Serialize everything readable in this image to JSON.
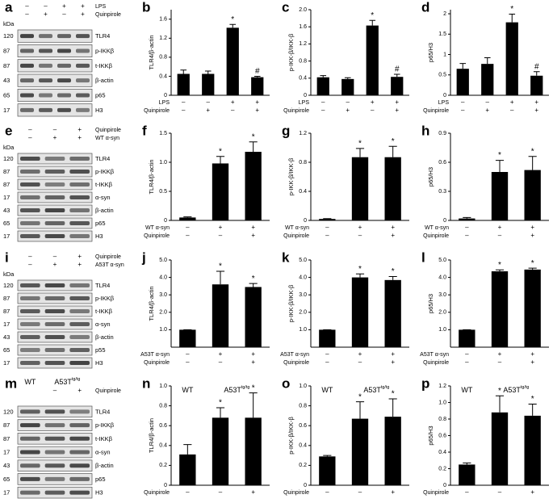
{
  "chart_data": [
    {
      "type": "bar",
      "panel_label": "b",
      "y_label": "TLR4/β-actin",
      "values": [
        0.45,
        0.45,
        1.42,
        0.38
      ],
      "errors": [
        0.08,
        0.06,
        0.07,
        0.02
      ],
      "marks": [
        null,
        null,
        "*",
        "#"
      ],
      "color": "#000000",
      "ylim": [
        0,
        1.8
      ],
      "yticks": [
        0,
        0.4,
        0.8,
        1.2,
        1.6
      ],
      "treatments": [
        {
          "name": "LPS",
          "signs": [
            "–",
            "–",
            "+",
            "+"
          ]
        },
        {
          "name": "Quinpirole",
          "signs": [
            "–",
            "+",
            "–",
            "+"
          ]
        }
      ]
    },
    {
      "type": "bar",
      "panel_label": "c",
      "y_label": "p-IKK-β/IKK-β",
      "values": [
        0.42,
        0.38,
        1.63,
        0.43
      ],
      "errors": [
        0.04,
        0.03,
        0.12,
        0.06
      ],
      "marks": [
        null,
        null,
        "*",
        "#"
      ],
      "color": "#000000",
      "ylim": [
        0,
        2.0
      ],
      "yticks": [
        0,
        0.4,
        0.8,
        1.2,
        1.6,
        {
          "value": 2,
          "label": "2.0"
        }
      ],
      "treatments": [
        {
          "name": "LPS",
          "signs": [
            "–",
            "–",
            "+",
            "+"
          ]
        },
        {
          "name": "Quinpirole",
          "signs": [
            "–",
            "+",
            "–",
            "+"
          ]
        }
      ]
    },
    {
      "type": "bar",
      "panel_label": "d",
      "y_label": "p65/H3",
      "values": [
        0.65,
        0.77,
        1.79,
        0.48
      ],
      "errors": [
        0.13,
        0.15,
        0.2,
        0.1
      ],
      "marks": [
        null,
        null,
        "*",
        "#"
      ],
      "color": "#000000",
      "ylim": [
        0,
        2.1
      ],
      "yticks": [
        0,
        0.5,
        1,
        1.5,
        2
      ],
      "treatments": [
        {
          "name": "LPS",
          "signs": [
            "–",
            "–",
            "+",
            "+"
          ]
        },
        {
          "name": "Quinpirole",
          "signs": [
            "–",
            "+",
            "–",
            "+"
          ]
        }
      ]
    },
    {
      "type": "bar",
      "panel_label": "f",
      "y_label": "TLR4/β-actin",
      "values": [
        0.05,
        0.98,
        1.18
      ],
      "errors": [
        0.01,
        0.12,
        0.17
      ],
      "marks": [
        null,
        "*",
        "*"
      ],
      "color": "#000000",
      "ylim": [
        0,
        1.5
      ],
      "yticks": [
        0,
        0.5,
        {
          "value": 1,
          "label": "1.0"
        },
        1.5
      ],
      "treatments": [
        {
          "name": "WT α-syn",
          "signs": [
            "–",
            "+",
            "+"
          ]
        },
        {
          "name": "Quinpirole",
          "signs": [
            "–",
            "–",
            "+"
          ]
        }
      ]
    },
    {
      "type": "bar",
      "panel_label": "g",
      "y_label": "p-IKK-β/IKK-β",
      "values": [
        0.02,
        0.87,
        0.87
      ],
      "errors": [
        0.005,
        0.12,
        0.15
      ],
      "marks": [
        null,
        "*",
        "*"
      ],
      "color": "#000000",
      "ylim": [
        0,
        1.2
      ],
      "yticks": [
        0,
        0.4,
        0.8,
        1.2
      ],
      "treatments": [
        {
          "name": "WT α-syn",
          "signs": [
            "–",
            "+",
            "+"
          ]
        },
        {
          "name": "Quinpirole",
          "signs": [
            "–",
            "–",
            "+"
          ]
        }
      ]
    },
    {
      "type": "bar",
      "panel_label": "h",
      "y_label": "p65/H3",
      "values": [
        0.02,
        0.5,
        0.52
      ],
      "errors": [
        0.01,
        0.12,
        0.14
      ],
      "marks": [
        null,
        "*",
        "*"
      ],
      "color": "#000000",
      "ylim": [
        0,
        0.9
      ],
      "yticks": [
        0,
        0.3,
        0.6,
        0.9
      ],
      "treatments": [
        {
          "name": "WT α-syn",
          "signs": [
            "–",
            "+",
            "+"
          ]
        },
        {
          "name": "Quinpirole",
          "signs": [
            "–",
            "–",
            "+"
          ]
        }
      ]
    },
    {
      "type": "bar",
      "panel_label": "j",
      "y_label": "TLR4/β-actin",
      "values": [
        1.0,
        3.6,
        3.45
      ],
      "errors": [
        0,
        0.75,
        0.2
      ],
      "marks": [
        null,
        "*",
        "*"
      ],
      "color": "#000000",
      "ylim": [
        0,
        5
      ],
      "yticks": [
        {
          "value": 1,
          "label": "1.0"
        },
        {
          "value": 2,
          "label": "2.0"
        },
        {
          "value": 3,
          "label": "3.0"
        },
        {
          "value": 4,
          "label": "4.0"
        },
        {
          "value": 5,
          "label": "5.0"
        }
      ],
      "treatments": [
        {
          "name": "A53T α-syn",
          "signs": [
            "–",
            "+",
            "+"
          ]
        },
        {
          "name": "Quinpirole",
          "signs": [
            "–",
            "–",
            "+"
          ]
        }
      ]
    },
    {
      "type": "bar",
      "panel_label": "k",
      "y_label": "p-IKK-β/IKK-β",
      "values": [
        1.0,
        4.0,
        3.85
      ],
      "errors": [
        0,
        0.2,
        0.2
      ],
      "marks": [
        null,
        "*",
        "*"
      ],
      "color": "#000000",
      "ylim": [
        0,
        5
      ],
      "yticks": [
        {
          "value": 1,
          "label": "1.0"
        },
        {
          "value": 2,
          "label": "2.0"
        },
        {
          "value": 3,
          "label": "3.0"
        },
        {
          "value": 4,
          "label": "4.0"
        },
        {
          "value": 5,
          "label": "5.0"
        }
      ],
      "treatments": [
        {
          "name": "A53T α-syn",
          "signs": [
            "–",
            "+",
            "+"
          ]
        },
        {
          "name": "Quinpirole",
          "signs": [
            "–",
            "–",
            "+"
          ]
        }
      ]
    },
    {
      "type": "bar",
      "panel_label": "l",
      "y_label": "p65/H3",
      "values": [
        1.0,
        4.35,
        4.45
      ],
      "errors": [
        0,
        0.08,
        0.08
      ],
      "marks": [
        null,
        "*",
        "*"
      ],
      "color": "#000000",
      "ylim": [
        0,
        5
      ],
      "yticks": [
        {
          "value": 1,
          "label": "1.0"
        },
        {
          "value": 2,
          "label": "2.0"
        },
        {
          "value": 3,
          "label": "3.0"
        },
        {
          "value": 4,
          "label": "4.0"
        },
        {
          "value": 5,
          "label": "5.0"
        }
      ],
      "treatments": [
        {
          "name": "A53T α-syn",
          "signs": [
            "–",
            "+",
            "+"
          ]
        },
        {
          "name": "Quinpirole",
          "signs": [
            "–",
            "–",
            "+"
          ]
        }
      ]
    },
    {
      "type": "bar",
      "panel_label": "n",
      "y_label": "TLR4/β-actin",
      "values": [
        0.31,
        0.68,
        0.68
      ],
      "errors": [
        0.1,
        0.1,
        0.25
      ],
      "marks": [
        null,
        "*",
        "*"
      ],
      "color": "#000000",
      "ylim": [
        0,
        1.0
      ],
      "yticks": [
        0,
        0.2,
        0.4,
        0.6,
        0.8,
        {
          "value": 1,
          "label": "1.0"
        }
      ],
      "groups": [
        {
          "text": "WT"
        },
        {
          "text": "A53T",
          "sup": "tg/tg"
        }
      ],
      "treatments": [
        {
          "name": "Quinpirole",
          "signs": [
            "–",
            "–",
            "+"
          ]
        }
      ]
    },
    {
      "type": "bar",
      "panel_label": "o",
      "y_label": "p-IKK-β/IKK-β",
      "values": [
        0.29,
        0.67,
        0.69
      ],
      "errors": [
        0.01,
        0.17,
        0.18
      ],
      "marks": [
        null,
        "*",
        "*"
      ],
      "color": "#000000",
      "ylim": [
        0,
        1.0
      ],
      "yticks": [
        0,
        0.2,
        0.4,
        0.6,
        0.8,
        {
          "value": 1,
          "label": "1.0"
        }
      ],
      "groups": [
        {
          "text": "WT"
        },
        {
          "text": "A53T",
          "sup": "tg/tg"
        }
      ],
      "treatments": [
        {
          "name": "Quinpirole",
          "signs": [
            "–",
            "–",
            "+"
          ]
        }
      ]
    },
    {
      "type": "bar",
      "panel_label": "p",
      "y_label": "p65/H3",
      "values": [
        0.25,
        0.88,
        0.84
      ],
      "errors": [
        0.02,
        0.2,
        0.14
      ],
      "marks": [
        null,
        "*",
        "*"
      ],
      "color": "#000000",
      "ylim": [
        0,
        1.2
      ],
      "yticks": [
        0,
        0.2,
        0.4,
        0.6,
        0.8,
        {
          "value": 1,
          "label": "1.0"
        },
        1.2
      ],
      "groups": [
        {
          "text": "WT"
        },
        {
          "text": "A53T",
          "sup": "tg/tg"
        }
      ],
      "treatments": [
        {
          "name": "Quinpirole",
          "signs": [
            "–",
            "–",
            "+"
          ]
        }
      ]
    }
  ],
  "blots": [
    {
      "panel_label": "a",
      "unit": "kDa",
      "lanes": 4,
      "header": [
        {
          "name": "LPS",
          "signs": [
            "–",
            "–",
            "+",
            "+"
          ]
        },
        {
          "name": "Quinpirole",
          "signs": [
            "–",
            "+",
            "–",
            "+"
          ]
        }
      ],
      "rows": [
        {
          "kda": "120",
          "protein": "TLR4"
        },
        {
          "kda": "87",
          "protein": "p-IKKβ"
        },
        {
          "kda": "87",
          "protein": "t-IKKβ"
        },
        {
          "kda": "43",
          "protein": "β-actin"
        },
        {
          "kda": "65",
          "protein": "p65"
        },
        {
          "kda": "17",
          "protein": "H3"
        }
      ]
    },
    {
      "panel_label": "e",
      "unit": "kDa",
      "lanes": 3,
      "header": [
        {
          "name": "Quinpirole",
          "signs": [
            "–",
            "–",
            "+"
          ]
        },
        {
          "name": "WT α-syn",
          "signs": [
            "–",
            "+",
            "+"
          ]
        }
      ],
      "rows": [
        {
          "kda": "120",
          "protein": "TLR4"
        },
        {
          "kda": "87",
          "protein": "p-IKKβ"
        },
        {
          "kda": "87",
          "protein": "t-IKKβ"
        },
        {
          "kda": "17",
          "protein": "α-syn"
        },
        {
          "kda": "43",
          "protein": "β-actin"
        },
        {
          "kda": "65",
          "protein": "p65"
        },
        {
          "kda": "17",
          "protein": "H3"
        }
      ]
    },
    {
      "panel_label": "i",
      "unit": "kDa",
      "lanes": 3,
      "header": [
        {
          "name": "Quinpirole",
          "signs": [
            "–",
            "–",
            "+"
          ]
        },
        {
          "name": "A53T α-syn",
          "signs": [
            "–",
            "+",
            "+"
          ]
        }
      ],
      "rows": [
        {
          "kda": "120",
          "protein": "TLR4"
        },
        {
          "kda": "87",
          "protein": "p-IKKβ"
        },
        {
          "kda": "87",
          "protein": "t-IKKβ"
        },
        {
          "kda": "17",
          "protein": "α-syn"
        },
        {
          "kda": "43",
          "protein": "β-actin"
        },
        {
          "kda": "65",
          "protein": "p55"
        },
        {
          "kda": "17",
          "protein": "H3"
        }
      ]
    },
    {
      "panel_label": "m",
      "lanes": 3,
      "groups": [
        {
          "text": "WT"
        },
        {
          "text": "A53T",
          "sup": "tg/tg"
        }
      ],
      "header": [
        {
          "name": "Quinpirole",
          "signs": [
            null,
            "–",
            "+"
          ]
        }
      ],
      "rows": [
        {
          "kda": "120",
          "protein": "TLR4"
        },
        {
          "kda": "87",
          "protein": "p-IKKβ"
        },
        {
          "kda": "87",
          "protein": "t-IKKβ"
        },
        {
          "kda": "17",
          "protein": "α-syn"
        },
        {
          "kda": "43",
          "protein": "β-actin"
        },
        {
          "kda": "65",
          "protein": "p65"
        },
        {
          "kda": "17",
          "protein": "H3"
        }
      ]
    }
  ]
}
